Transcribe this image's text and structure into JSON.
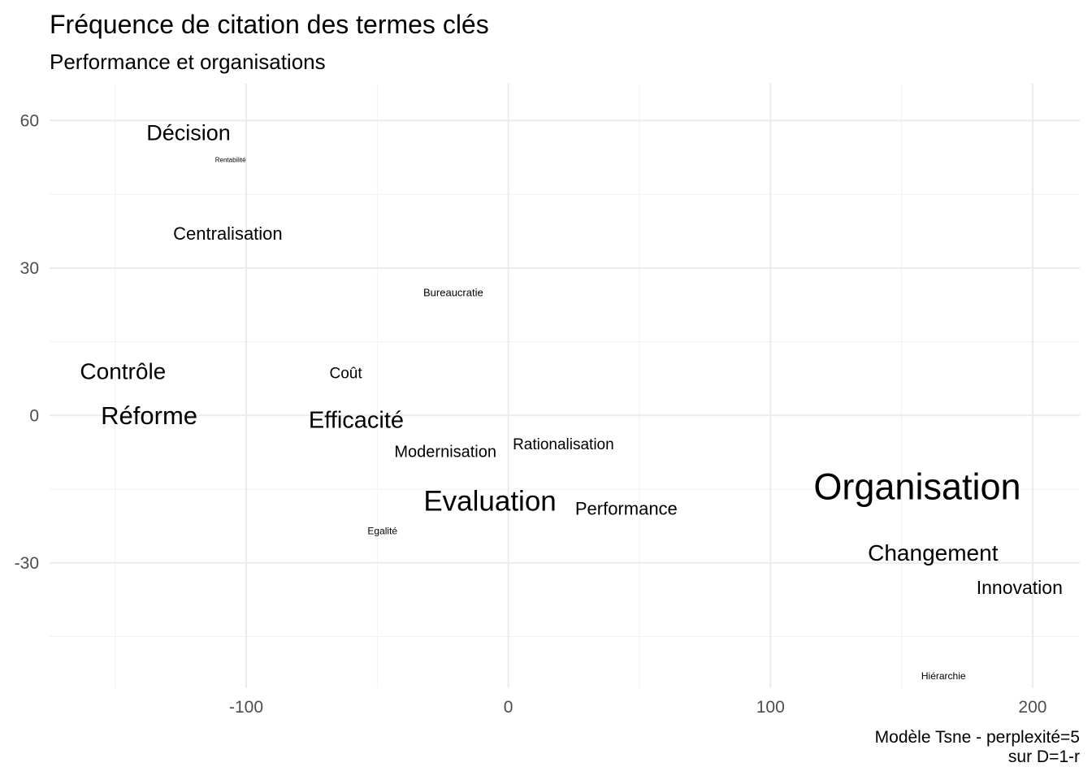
{
  "chart_data": {
    "type": "scatter",
    "title": "Fréquence de citation des termes clés",
    "subtitle": "Performance et organisations",
    "caption": [
      "Modèle Tsne - perplexité=5",
      "sur D=1-r"
    ],
    "xlabel": "",
    "ylabel": "",
    "xlim": [
      -175,
      218
    ],
    "ylim": [
      -55.5,
      67.5
    ],
    "x_ticks": [
      -100,
      0,
      100,
      200
    ],
    "y_ticks": [
      60,
      30,
      0,
      -30
    ],
    "grid": true,
    "legend": "none",
    "text_color": "#000000",
    "points": [
      {
        "label": "Décision",
        "x": -122,
        "y": 57.5,
        "size": 27
      },
      {
        "label": "Rentabilité",
        "x": -106,
        "y": 52,
        "size": 8
      },
      {
        "label": "Centralisation",
        "x": -107,
        "y": 37,
        "size": 22
      },
      {
        "label": "Bureaucratie",
        "x": -21,
        "y": 25,
        "size": 13
      },
      {
        "label": "Contrôle",
        "x": -147,
        "y": 9,
        "size": 28
      },
      {
        "label": "Coût",
        "x": -62,
        "y": 8.5,
        "size": 19
      },
      {
        "label": "Réforme",
        "x": -137,
        "y": 0,
        "size": 31
      },
      {
        "label": "Efficacité",
        "x": -58,
        "y": -1,
        "size": 29
      },
      {
        "label": "Modernisation",
        "x": -24,
        "y": -7.5,
        "size": 20
      },
      {
        "label": "Rationalisation",
        "x": 21,
        "y": -6,
        "size": 19
      },
      {
        "label": "Organisation",
        "x": 156,
        "y": -14.5,
        "size": 45
      },
      {
        "label": "Evaluation",
        "x": -7,
        "y": -17.5,
        "size": 35
      },
      {
        "label": "Performance",
        "x": 45,
        "y": -19,
        "size": 22
      },
      {
        "label": "Egalité",
        "x": -48,
        "y": -23.5,
        "size": 12
      },
      {
        "label": "Changement",
        "x": 162,
        "y": -28,
        "size": 28
      },
      {
        "label": "Innovation",
        "x": 195,
        "y": -35,
        "size": 23
      },
      {
        "label": "Hiérarchie",
        "x": 166,
        "y": -53,
        "size": 12
      }
    ]
  }
}
